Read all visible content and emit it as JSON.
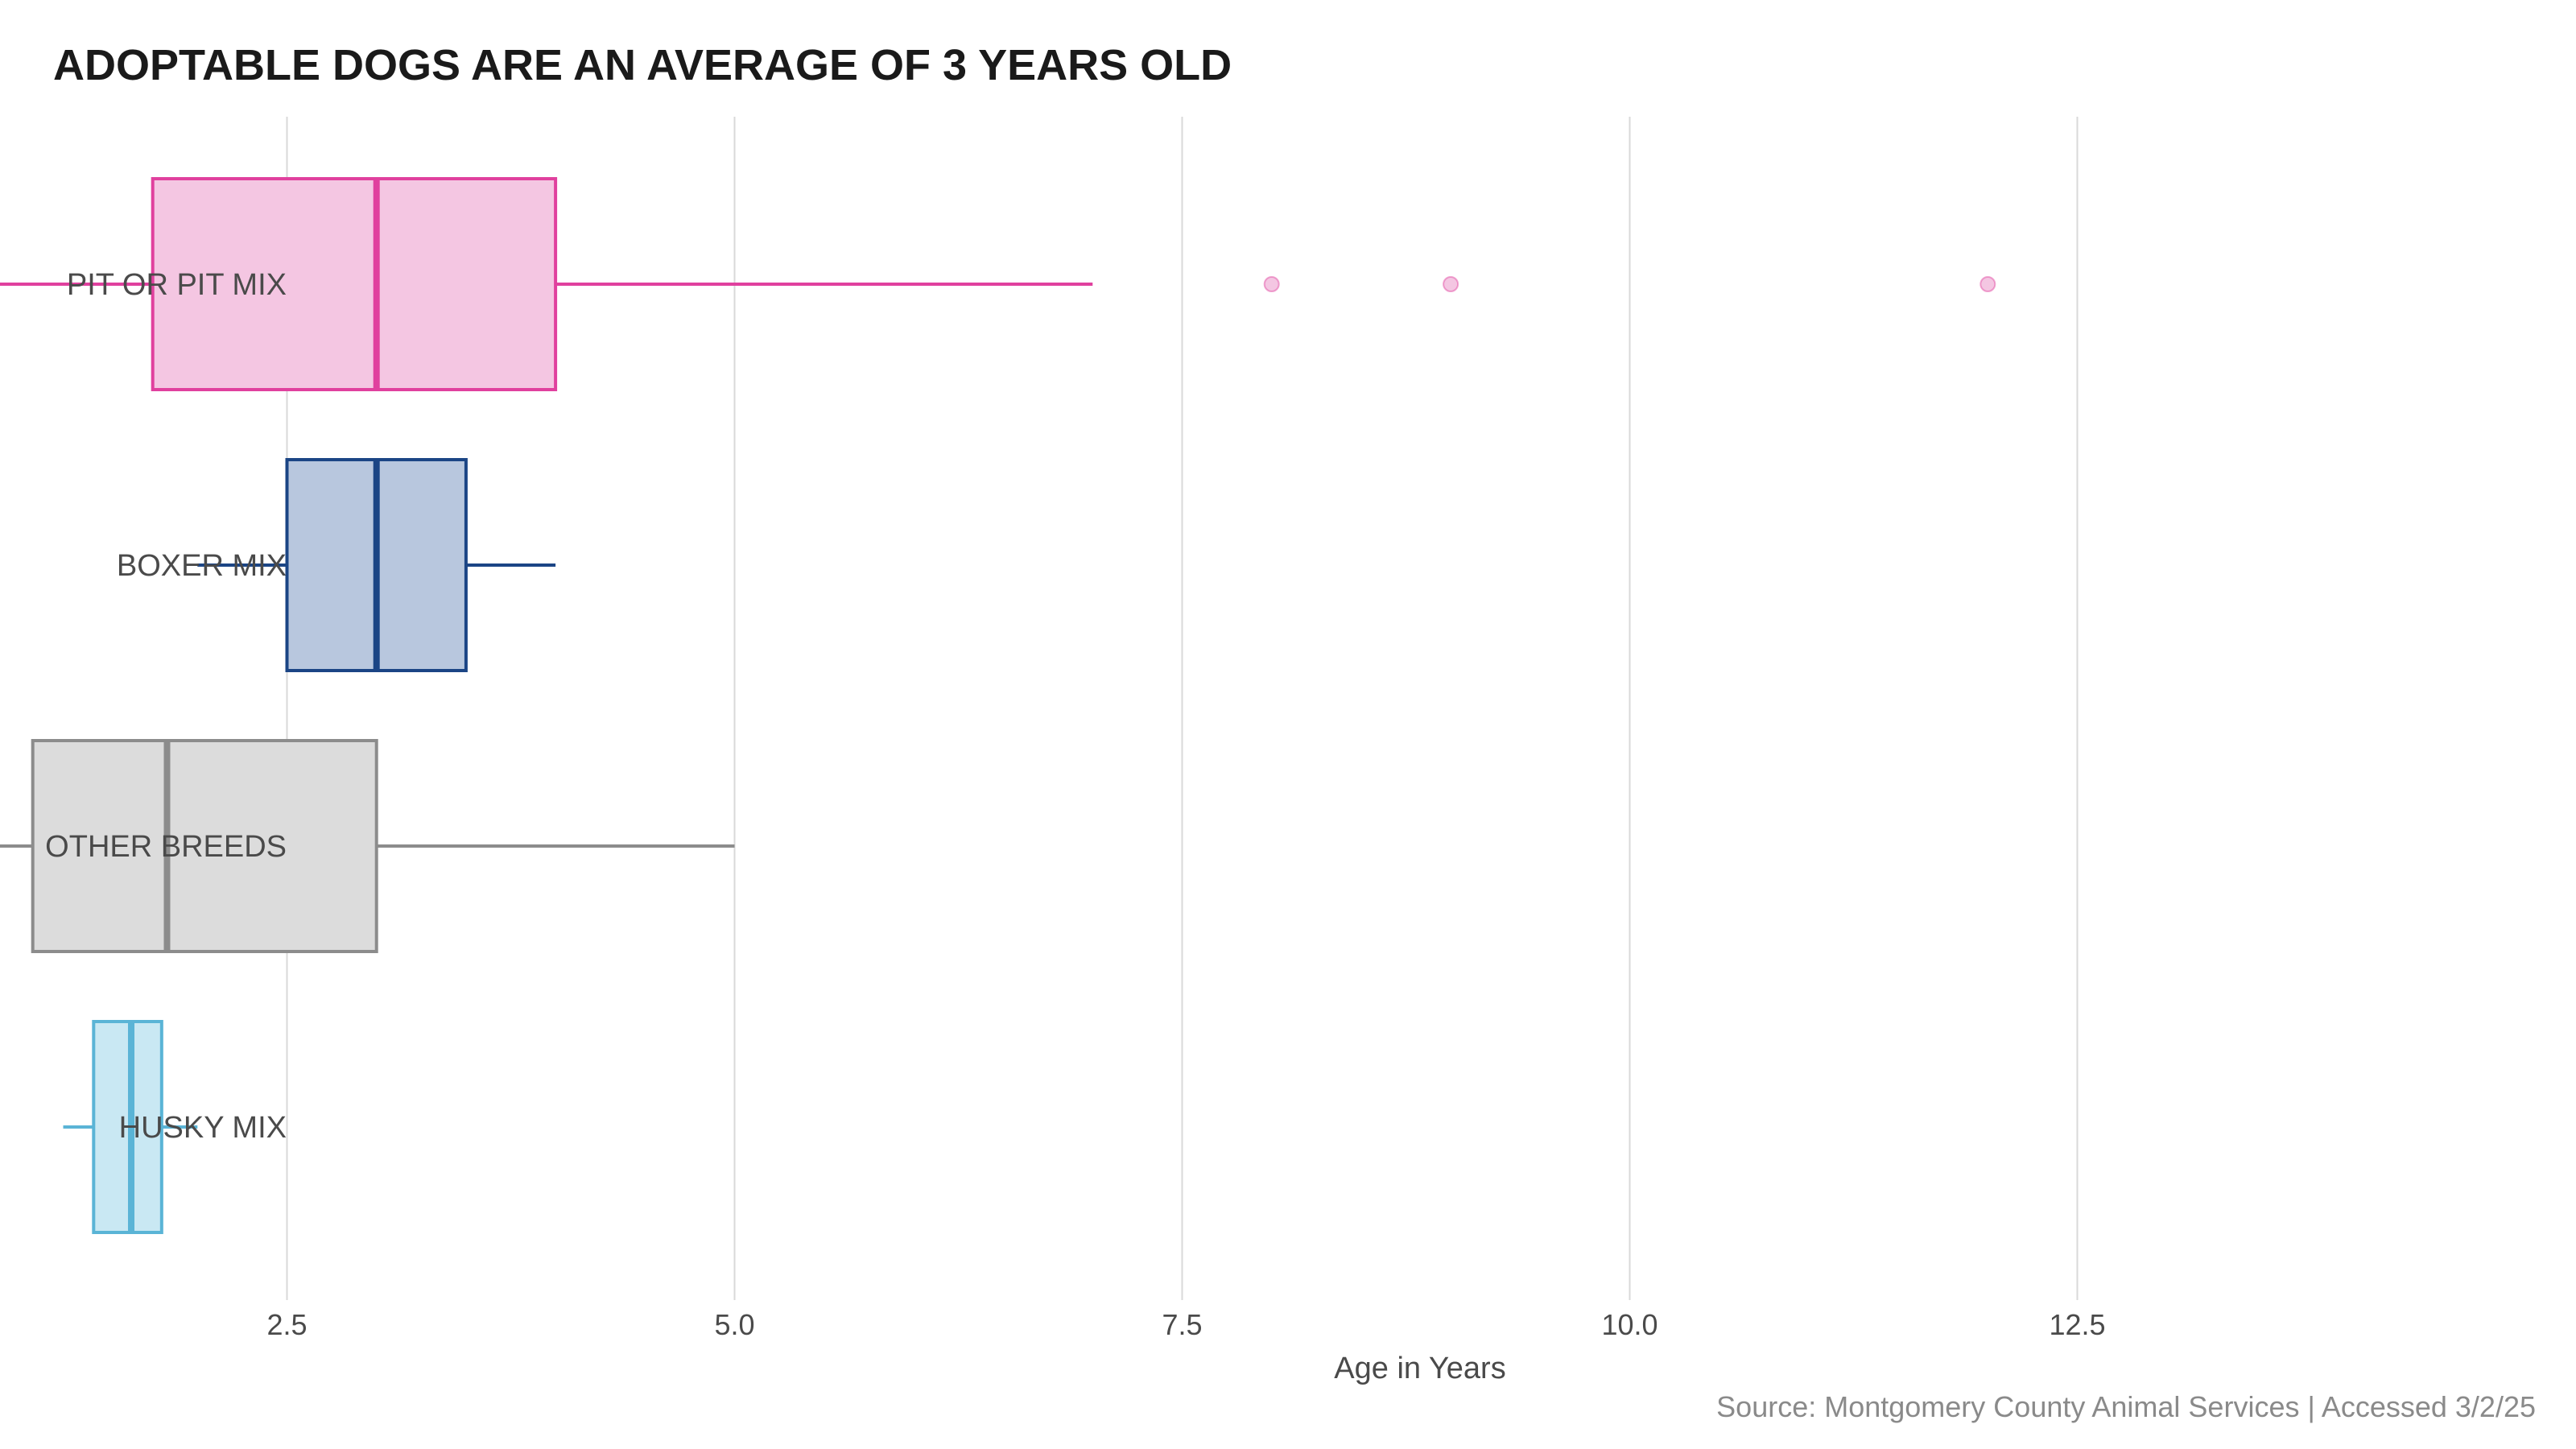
{
  "chart_data": {
    "type": "boxplot",
    "title": "ADOPTABLE DOGS ARE AN AVERAGE OF 3 YEARS OLD",
    "xlabel": "Age in Years",
    "ylabel": "",
    "caption": "Source: Montgomery County Animal Services | Accessed 3/2/25",
    "xlim": [
      0.0,
      12.5
    ],
    "x_ticks": [
      2.5,
      5.0,
      7.5,
      10.0,
      12.5
    ],
    "x_tick_labels": [
      "2.5",
      "5.0",
      "7.5",
      "10.0",
      "12.5"
    ],
    "grid": "vertical",
    "legend": "none",
    "categories": [
      "PIT OR PIT MIX",
      "BOXER MIX",
      "OTHER BREEDS",
      "HUSKY MIX"
    ],
    "series": [
      {
        "category": "PIT OR PIT MIX",
        "whisker_low": 0.67,
        "q1": 1.75,
        "median": 3.0,
        "q3": 4.0,
        "whisker_high": 7.0,
        "outliers": [
          8.0,
          9.0,
          12.0
        ],
        "stroke": "#e0409e",
        "fill": "#f4c6e2"
      },
      {
        "category": "BOXER MIX",
        "whisker_low": 2.0,
        "q1": 2.5,
        "median": 3.0,
        "q3": 3.5,
        "whisker_high": 4.0,
        "outliers": [],
        "stroke": "#1b4585",
        "fill": "#b8c7de"
      },
      {
        "category": "OTHER BREEDS",
        "whisker_low": 0.83,
        "q1": 1.08,
        "median": 1.83,
        "q3": 3.0,
        "whisker_high": 5.0,
        "outliers": [],
        "stroke": "#8c8c8c",
        "fill": "#dcdcdc"
      },
      {
        "category": "HUSKY MIX",
        "whisker_low": 1.25,
        "q1": 1.42,
        "median": 1.63,
        "q3": 1.8,
        "whisker_high": 2.0,
        "outliers": [],
        "stroke": "#5ab4d6",
        "fill": "#c9e8f3"
      }
    ]
  }
}
